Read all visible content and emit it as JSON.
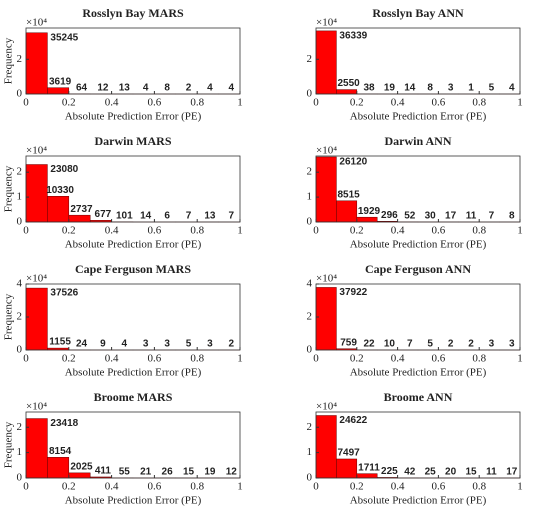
{
  "chart_data": [
    {
      "type": "histogram",
      "title": "Rosslyn Bay MARS",
      "xlabel": "Absolute Prediction Error (PE)",
      "ylabel": "Frequency",
      "y_multiplier": "×10⁴",
      "bins": [
        0,
        0.1,
        0.2,
        0.3,
        0.4,
        0.5,
        0.6,
        0.7,
        0.8,
        0.9,
        1
      ],
      "counts": [
        35245,
        3619,
        64,
        12,
        13,
        4,
        8,
        2,
        4,
        4
      ],
      "color": "#ff0000",
      "xlim": [
        0,
        1
      ],
      "xticks": [
        0,
        0.2,
        0.4,
        0.6,
        0.8,
        1
      ],
      "ylim": [
        0,
        38000
      ],
      "yticks": [
        0,
        {
          "value": 20000,
          "label": "2"
        }
      ]
    },
    {
      "type": "histogram",
      "title": "Rosslyn Bay ANN",
      "xlabel": "Absolute Prediction Error (PE)",
      "y_multiplier": "×10⁴",
      "bins": [
        0,
        0.1,
        0.2,
        0.3,
        0.4,
        0.5,
        0.6,
        0.7,
        0.8,
        0.9,
        1
      ],
      "counts": [
        36339,
        2550,
        38,
        19,
        14,
        8,
        3,
        1,
        5,
        4
      ],
      "color": "#ff0000",
      "xlim": [
        0,
        1
      ],
      "xticks": [
        0,
        0.2,
        0.4,
        0.6,
        0.8,
        1
      ],
      "ylim": [
        0,
        38000
      ],
      "yticks": [
        0,
        {
          "value": 20000,
          "label": "2"
        }
      ]
    },
    {
      "type": "histogram",
      "title": "Darwin MARS",
      "xlabel": "Absolute Prediction Error (PE)",
      "ylabel": "Frequency",
      "y_multiplier": "×10⁴",
      "bins": [
        0,
        0.1,
        0.2,
        0.3,
        0.4,
        0.5,
        0.6,
        0.7,
        0.8,
        0.9,
        1
      ],
      "counts": [
        23080,
        10330,
        2737,
        677,
        101,
        14,
        6,
        7,
        13,
        7
      ],
      "color": "#ff0000",
      "xlim": [
        0,
        1
      ],
      "xticks": [
        0,
        0.2,
        0.4,
        0.6,
        0.8,
        1
      ],
      "ylim": [
        0,
        26500
      ],
      "yticks": [
        0,
        {
          "value": 10000,
          "label": "1"
        },
        {
          "value": 20000,
          "label": "2"
        }
      ]
    },
    {
      "type": "histogram",
      "title": "Darwin ANN",
      "xlabel": "Absolute Prediction Error (PE)",
      "y_multiplier": "×10⁴",
      "bins": [
        0,
        0.1,
        0.2,
        0.3,
        0.4,
        0.5,
        0.6,
        0.7,
        0.8,
        0.9,
        1
      ],
      "counts": [
        26120,
        8515,
        1929,
        296,
        52,
        30,
        17,
        11,
        7,
        8
      ],
      "color": "#ff0000",
      "xlim": [
        0,
        1
      ],
      "xticks": [
        0,
        0.2,
        0.4,
        0.6,
        0.8,
        1
      ],
      "ylim": [
        0,
        26500
      ],
      "yticks": [
        0,
        {
          "value": 10000,
          "label": "1"
        },
        {
          "value": 20000,
          "label": "2"
        }
      ]
    },
    {
      "type": "histogram",
      "title": "Cape Ferguson MARS",
      "xlabel": "Absolute Prediction Error (PE)",
      "ylabel": "Frequency",
      "y_multiplier": "×10⁴",
      "bins": [
        0,
        0.1,
        0.2,
        0.3,
        0.4,
        0.5,
        0.6,
        0.7,
        0.8,
        0.9,
        1
      ],
      "counts": [
        37526,
        1155,
        24,
        9,
        4,
        3,
        3,
        5,
        3,
        2
      ],
      "color": "#ff0000",
      "xlim": [
        0,
        1
      ],
      "xticks": [
        0,
        0.2,
        0.4,
        0.6,
        0.8,
        1
      ],
      "ylim": [
        0,
        40000
      ],
      "yticks": [
        0,
        {
          "value": 20000,
          "label": "2"
        },
        {
          "value": 40000,
          "label": "4"
        }
      ]
    },
    {
      "type": "histogram",
      "title": "Cape Ferguson ANN",
      "xlabel": "Absolute Prediction Error (PE)",
      "y_multiplier": "×10⁴",
      "bins": [
        0,
        0.1,
        0.2,
        0.3,
        0.4,
        0.5,
        0.6,
        0.7,
        0.8,
        0.9,
        1
      ],
      "counts": [
        37922,
        759,
        22,
        10,
        7,
        5,
        2,
        2,
        3,
        3
      ],
      "color": "#ff0000",
      "xlim": [
        0,
        1
      ],
      "xticks": [
        0,
        0.2,
        0.4,
        0.6,
        0.8,
        1
      ],
      "ylim": [
        0,
        40000
      ],
      "yticks": [
        0,
        {
          "value": 20000,
          "label": "2"
        },
        {
          "value": 40000,
          "label": "4"
        }
      ]
    },
    {
      "type": "histogram",
      "title": "Broome MARS",
      "xlabel": "Absolute Prediction Error (PE)",
      "ylabel": "Frequency",
      "y_multiplier": "×10⁴",
      "bins": [
        0,
        0.1,
        0.2,
        0.3,
        0.4,
        0.5,
        0.6,
        0.7,
        0.8,
        0.9,
        1
      ],
      "counts": [
        23418,
        8154,
        2025,
        411,
        55,
        21,
        26,
        15,
        19,
        12
      ],
      "color": "#ff0000",
      "xlim": [
        0,
        1
      ],
      "xticks": [
        0,
        0.2,
        0.4,
        0.6,
        0.8,
        1
      ],
      "ylim": [
        0,
        26000
      ],
      "yticks": [
        0,
        {
          "value": 10000,
          "label": "1"
        },
        {
          "value": 20000,
          "label": "2"
        }
      ]
    },
    {
      "type": "histogram",
      "title": "Broome ANN",
      "xlabel": "Absolute Prediction Error (PE)",
      "y_multiplier": "×10⁴",
      "bins": [
        0,
        0.1,
        0.2,
        0.3,
        0.4,
        0.5,
        0.6,
        0.7,
        0.8,
        0.9,
        1
      ],
      "counts": [
        24622,
        7497,
        1711,
        225,
        42,
        25,
        20,
        15,
        11,
        17
      ],
      "color": "#ff0000",
      "xlim": [
        0,
        1
      ],
      "xticks": [
        0,
        0.2,
        0.4,
        0.6,
        0.8,
        1
      ],
      "ylim": [
        0,
        26000
      ],
      "yticks": [
        0,
        {
          "value": 10000,
          "label": "1"
        },
        {
          "value": 20000,
          "label": "2"
        }
      ]
    }
  ]
}
